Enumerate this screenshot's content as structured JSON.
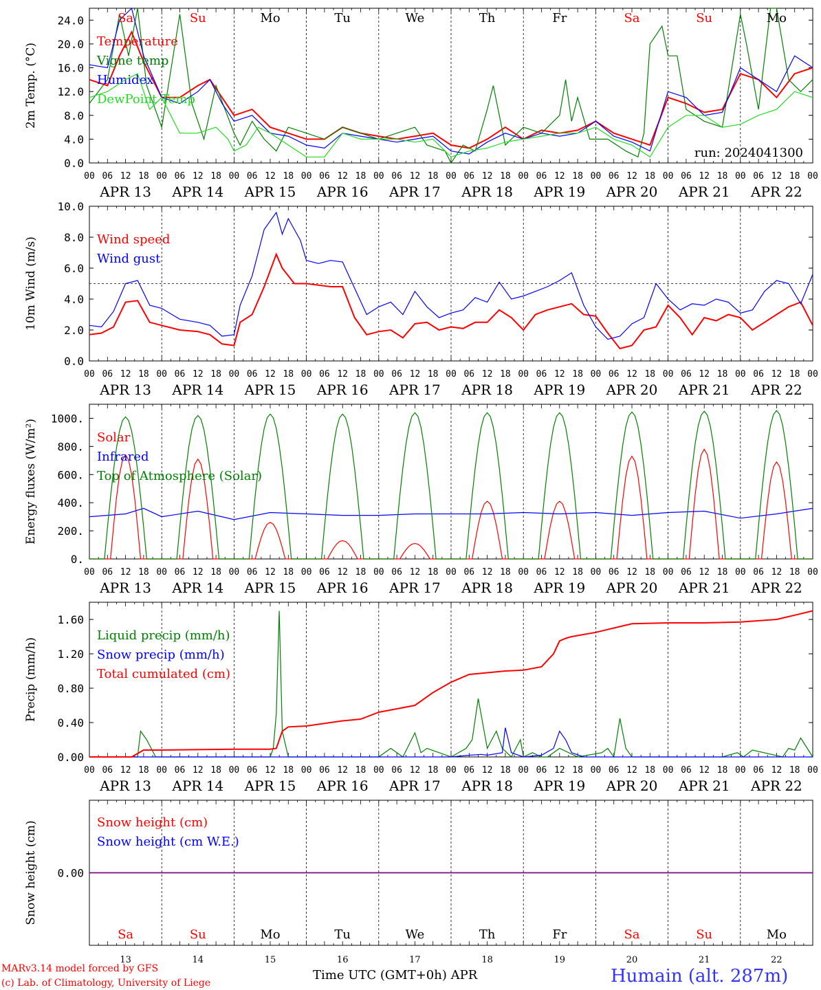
{
  "days": [
    "Sa",
    "Su",
    "Mo",
    "Tu",
    "We",
    "Th",
    "Fr",
    "Sa",
    "Su",
    "Mo"
  ],
  "weekend_flags": [
    true,
    true,
    false,
    false,
    false,
    false,
    false,
    true,
    true,
    false
  ],
  "dates": [
    "APR 13",
    "APR 14",
    "APR 15",
    "APR 16",
    "APR 17",
    "APR 18",
    "APR 19",
    "APR 20",
    "APR 21",
    "APR 22"
  ],
  "day_numbers": [
    "13",
    "14",
    "15",
    "16",
    "17",
    "18",
    "19",
    "20",
    "21",
    "22"
  ],
  "hour_labels": [
    "00",
    "06",
    "12",
    "18"
  ],
  "colors": {
    "red": "#ff0000",
    "green": "#008000",
    "blue": "#0000ff",
    "lightgreen": "#22dd22",
    "purple": "#800080"
  },
  "footer": {
    "model": "MARv3.14 model forced by GFS",
    "lab": "(c) Lab. of Climatology, University of Liege",
    "time_label": "Time UTC (GMT+0h) APR",
    "station": "Humain (alt. 287m)"
  },
  "chart_data": [
    {
      "type": "line",
      "ylabel": "2m Temp. (°C)",
      "ylim": [
        0,
        26
      ],
      "yticks": [
        "0.0",
        "4.0",
        "8.0",
        "12.0",
        "16.0",
        "20.0",
        "24.0"
      ],
      "annotation": "run: 2024041300",
      "x_start_hour": 0,
      "x_end_hour": 240,
      "series": [
        {
          "name": "Temperature",
          "color": "red",
          "x": [
            0,
            6,
            10,
            14,
            18,
            24,
            30,
            36,
            40,
            44,
            48,
            54,
            60,
            66,
            72,
            78,
            84,
            90,
            96,
            102,
            108,
            114,
            120,
            126,
            132,
            138,
            144,
            150,
            156,
            162,
            168,
            174,
            180,
            186,
            192,
            198,
            204,
            210,
            216,
            222,
            228,
            234,
            240
          ],
          "y": [
            14,
            13,
            18,
            22,
            17,
            11,
            11,
            13,
            14,
            11,
            8,
            9,
            6,
            5,
            4,
            4,
            6,
            5,
            4.5,
            4,
            4.5,
            5,
            3,
            2.5,
            4,
            6,
            4,
            5.5,
            5,
            5.5,
            7,
            5,
            4,
            3,
            11,
            10,
            8.5,
            9,
            15,
            14,
            11,
            15,
            16
          ]
        },
        {
          "name": "Vigne temp",
          "color": "green",
          "x": [
            0,
            6,
            10,
            13,
            16,
            19,
            24,
            30,
            34,
            38,
            42,
            48,
            50,
            54,
            58,
            62,
            66,
            72,
            78,
            84,
            90,
            96,
            102,
            108,
            112,
            118,
            120,
            124,
            128,
            132,
            134,
            138,
            144,
            150,
            156,
            158,
            160,
            162,
            166,
            172,
            178,
            182,
            184,
            186,
            190,
            192,
            195,
            198,
            204,
            210,
            216,
            218,
            222,
            226,
            228,
            232,
            236,
            240
          ],
          "y": [
            10,
            14,
            25,
            18,
            26,
            13,
            6,
            25,
            10,
            4,
            13,
            5,
            3,
            7,
            4,
            2,
            6,
            5,
            4,
            6,
            5,
            4,
            5,
            6,
            3,
            2,
            0,
            3,
            2,
            9,
            13,
            3,
            6,
            5,
            8,
            14,
            7,
            11,
            4,
            4,
            2,
            1,
            5,
            20,
            23,
            18,
            18,
            9,
            7,
            6,
            25,
            20,
            9,
            26,
            26,
            14,
            12,
            14
          ]
        },
        {
          "name": "Humidex",
          "color": "blue",
          "x": [
            0,
            6,
            10,
            14,
            18,
            24,
            30,
            36,
            40,
            44,
            48,
            54,
            60,
            66,
            72,
            78,
            84,
            90,
            96,
            102,
            108,
            114,
            120,
            126,
            132,
            138,
            144,
            150,
            156,
            162,
            168,
            174,
            180,
            186,
            192,
            198,
            204,
            210,
            216,
            222,
            228,
            234,
            240
          ],
          "y": [
            16.5,
            16,
            24,
            26,
            18,
            11,
            10,
            12,
            14,
            10,
            7,
            8,
            5,
            4.5,
            3,
            2.5,
            5,
            4.5,
            4,
            3.5,
            4,
            4.5,
            2,
            1.5,
            3.5,
            5,
            4,
            5,
            4.5,
            5,
            7,
            4.5,
            3.5,
            2,
            12,
            11,
            8,
            8.5,
            16,
            14,
            12,
            18,
            16
          ]
        },
        {
          "name": "DewPoint Temp",
          "color": "lightgreen",
          "x": [
            0,
            6,
            12,
            16,
            20,
            24,
            30,
            36,
            42,
            46,
            48,
            52,
            56,
            60,
            66,
            72,
            78,
            84,
            90,
            96,
            102,
            108,
            114,
            120,
            126,
            132,
            138,
            144,
            150,
            156,
            162,
            168,
            174,
            180,
            186,
            192,
            198,
            204,
            210,
            216,
            222,
            228,
            234,
            240
          ],
          "y": [
            11,
            12,
            14,
            15,
            9,
            11,
            5,
            5,
            6,
            4,
            2,
            3,
            6,
            5,
            3,
            1,
            1,
            5,
            4,
            4,
            4,
            3.5,
            4,
            1,
            2,
            2.5,
            3.5,
            4,
            4.5,
            5,
            5,
            6,
            4,
            3,
            1,
            6,
            8,
            8,
            6,
            6.5,
            8,
            9,
            12,
            11
          ]
        }
      ]
    },
    {
      "type": "line",
      "ylabel": "10m Wind (m/s)",
      "ylim": [
        0,
        10
      ],
      "yticks": [
        "0.0",
        "2.0",
        "4.0",
        "6.0",
        "8.0",
        "10.0"
      ],
      "ref_line": 5,
      "series": [
        {
          "name": "Wind speed",
          "color": "red",
          "x": [
            0,
            4,
            8,
            12,
            16,
            20,
            24,
            30,
            36,
            40,
            44,
            48,
            50,
            54,
            58,
            62,
            64,
            68,
            72,
            76,
            80,
            84,
            88,
            92,
            96,
            100,
            104,
            108,
            112,
            116,
            120,
            124,
            128,
            132,
            136,
            140,
            144,
            148,
            152,
            156,
            160,
            164,
            168,
            172,
            176,
            180,
            184,
            188,
            192,
            196,
            200,
            204,
            208,
            212,
            216,
            220,
            224,
            228,
            232,
            236,
            240
          ],
          "y": [
            1.7,
            1.8,
            2.2,
            3.8,
            3.9,
            2.5,
            2.3,
            2,
            1.9,
            1.7,
            1.1,
            1,
            2.5,
            3,
            4.8,
            6.9,
            6,
            5,
            5,
            4.9,
            4.8,
            4.8,
            2.8,
            1.7,
            1.9,
            2,
            1.5,
            2.4,
            2.5,
            2,
            2.2,
            2.1,
            2.5,
            2.5,
            3.3,
            2.8,
            2,
            3,
            3.3,
            3.5,
            3.7,
            3,
            2.9,
            1.8,
            0.8,
            1,
            2,
            2.2,
            3.6,
            2.8,
            1.7,
            2.8,
            2.6,
            3,
            2.8,
            2,
            2.5,
            3,
            3.5,
            3.8,
            2.3
          ]
        },
        {
          "name": "Wind gust",
          "color": "blue",
          "x": [
            0,
            4,
            8,
            12,
            16,
            20,
            24,
            30,
            36,
            40,
            44,
            48,
            50,
            54,
            58,
            62,
            64,
            66,
            70,
            72,
            76,
            80,
            84,
            88,
            92,
            96,
            100,
            104,
            108,
            112,
            116,
            120,
            124,
            128,
            132,
            136,
            140,
            144,
            148,
            152,
            156,
            160,
            164,
            168,
            172,
            176,
            180,
            184,
            188,
            192,
            196,
            200,
            204,
            208,
            212,
            216,
            220,
            224,
            228,
            232,
            236,
            240
          ],
          "y": [
            2.3,
            2.2,
            3.2,
            5,
            5.2,
            3.6,
            3.4,
            2.7,
            2.5,
            2.3,
            1.6,
            1.7,
            3.6,
            5.5,
            8.5,
            9.6,
            8.2,
            9.2,
            7.8,
            6.5,
            6.3,
            6.5,
            6.4,
            4.7,
            3,
            3.5,
            3.8,
            3,
            4.5,
            3.5,
            2.8,
            3.1,
            3.3,
            4.1,
            3.8,
            5.1,
            4,
            4.2,
            4.5,
            4.8,
            5.2,
            5.7,
            3.6,
            2.2,
            1.4,
            1.6,
            2.4,
            2.8,
            5,
            4,
            3.3,
            3.7,
            3.6,
            4,
            3.8,
            3.1,
            3.3,
            4.5,
            5.2,
            5,
            3.7,
            5.6
          ]
        }
      ]
    },
    {
      "type": "line",
      "ylabel": "Energy fluxes (W/m²)",
      "ylim": [
        0,
        1100
      ],
      "yticks": [
        "0.",
        "200.",
        "400.",
        "600.",
        "800.",
        "1000."
      ],
      "series": [
        {
          "name": "Solar",
          "color": "red",
          "peaks": [
            740,
            710,
            260,
            130,
            110,
            410,
            410,
            730,
            780,
            690
          ],
          "peak_hour": 12
        },
        {
          "name": "Infrared",
          "color": "blue",
          "base": [
            310,
            300,
            340,
            320,
            310,
            300,
            320,
            300,
            330,
            320
          ],
          "x": [
            0,
            12,
            18,
            24,
            36,
            48,
            60,
            72,
            84,
            96,
            108,
            120,
            132,
            144,
            156,
            168,
            180,
            192,
            204,
            216,
            228,
            240
          ],
          "y": [
            300,
            320,
            360,
            300,
            340,
            280,
            330,
            320,
            310,
            310,
            320,
            320,
            320,
            330,
            320,
            330,
            310,
            330,
            340,
            290,
            320,
            360
          ]
        },
        {
          "name": "Top of Atmosphere (Solar)",
          "color": "green",
          "peaks": [
            1010,
            1020,
            1030,
            1030,
            1040,
            1040,
            1040,
            1045,
            1050,
            1055
          ],
          "peak_hour": 12
        }
      ]
    },
    {
      "type": "line",
      "ylabel": "Precip (mm/h)",
      "ylim": [
        0,
        1.8
      ],
      "yticks": [
        "0.00",
        "0.40",
        "0.80",
        "1.20",
        "1.60"
      ],
      "series": [
        {
          "name": "Liquid precip (mm/h)",
          "color": "green",
          "x": [
            0,
            16,
            17,
            19,
            22,
            60,
            61,
            62,
            63,
            64,
            66,
            96,
            100,
            104,
            108,
            110,
            112,
            120,
            125,
            127,
            129,
            132,
            135,
            136,
            137,
            140,
            143,
            144,
            147,
            150,
            152,
            156,
            162,
            170,
            172,
            174,
            176,
            178,
            180,
            182,
            184,
            200,
            210,
            215,
            217,
            220,
            230,
            232,
            234,
            236,
            240
          ],
          "y": [
            0,
            0,
            0.3,
            0.2,
            0,
            0,
            0.1,
            0.5,
            1.7,
            0.3,
            0,
            0,
            0.1,
            0,
            0.28,
            0.05,
            0.1,
            0,
            0.1,
            0.2,
            0.68,
            0.1,
            0.3,
            0.2,
            0.1,
            0,
            0.2,
            0,
            0.05,
            0,
            0,
            0.1,
            0,
            0.05,
            0.1,
            0,
            0.45,
            0.1,
            0,
            0,
            0,
            0,
            0,
            0.05,
            0,
            0.08,
            0,
            0.1,
            0.08,
            0.22,
            0
          ]
        },
        {
          "name": "Snow precip (mm/h)",
          "color": "blue",
          "x": [
            0,
            120,
            126,
            130,
            132,
            137,
            138,
            140,
            144,
            150,
            154,
            156,
            158,
            160,
            164,
            240
          ],
          "y": [
            0,
            0,
            0.02,
            0.03,
            0.02,
            0.05,
            0.34,
            0.05,
            0,
            0.02,
            0.1,
            0.3,
            0.2,
            0.05,
            0,
            0
          ]
        },
        {
          "name": "Total cumulated (cm)",
          "color": "red",
          "x": [
            0,
            14,
            18,
            24,
            48,
            60,
            62,
            64,
            66,
            72,
            84,
            90,
            96,
            102,
            108,
            114,
            120,
            126,
            132,
            138,
            144,
            150,
            154,
            156,
            158,
            160,
            168,
            174,
            180,
            192,
            204,
            216,
            220,
            228,
            234,
            240
          ],
          "y": [
            0,
            0,
            0.08,
            0.08,
            0.09,
            0.09,
            0.1,
            0.3,
            0.35,
            0.36,
            0.42,
            0.44,
            0.52,
            0.56,
            0.6,
            0.75,
            0.87,
            0.96,
            0.98,
            1,
            1.01,
            1.05,
            1.2,
            1.35,
            1.38,
            1.4,
            1.45,
            1.5,
            1.55,
            1.56,
            1.56,
            1.57,
            1.58,
            1.6,
            1.65,
            1.7
          ]
        }
      ]
    },
    {
      "type": "line",
      "ylabel": "Snow height (cm)",
      "yticks": [
        "0.00"
      ],
      "series": [
        {
          "name": "Snow height (cm)",
          "color": "red",
          "x": [
            0,
            240
          ],
          "y": [
            0,
            0
          ]
        },
        {
          "name": "Snow height (cm W.E.)",
          "color": "blue",
          "x": [
            0,
            240
          ],
          "y": [
            0,
            0
          ]
        }
      ]
    }
  ]
}
